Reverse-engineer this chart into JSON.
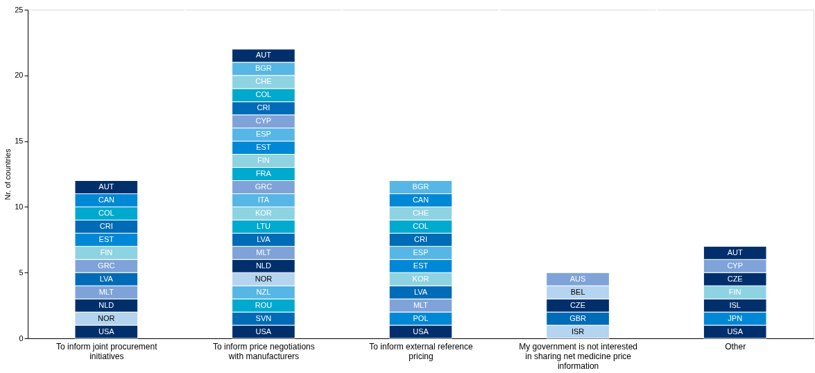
{
  "chart_data": {
    "type": "bar",
    "stacked": true,
    "ylabel": "Nr. of countries",
    "ylim": [
      0,
      25
    ],
    "yticks": [
      0,
      5,
      10,
      15,
      20,
      25
    ],
    "grid": "x",
    "categories": [
      "To inform joint procurement initiatives",
      "To inform price negotiations with manufacturers",
      "To inform external reference pricing",
      "My government is not interested in sharing net medicine price information",
      "Other"
    ],
    "series": [
      {
        "values": [
          1,
          1,
          1,
          1,
          1
        ],
        "colors": [
          "#002f6c",
          "#002f6c",
          "#002f6c",
          "#b4d4f0",
          "#002f6c"
        ],
        "value_labels": [
          "USA",
          "USA",
          "USA",
          "ISR",
          "USA"
        ]
      },
      {
        "values": [
          1,
          1,
          1,
          1,
          1
        ],
        "colors": [
          "#b4d4f0",
          "#006bb6",
          "#0088d6",
          "#006bb6",
          "#0088d6"
        ],
        "value_labels": [
          "NOR",
          "SVN",
          "POL",
          "GBR",
          "JPN"
        ]
      },
      {
        "values": [
          1,
          1,
          1,
          1,
          1
        ],
        "colors": [
          "#002f6c",
          "#00a9ce",
          "#7fa3d8",
          "#002f6c",
          "#002f6c"
        ],
        "value_labels": [
          "NLD",
          "ROU",
          "MLT",
          "CZE",
          "ISL"
        ]
      },
      {
        "values": [
          1,
          1,
          1,
          1,
          1
        ],
        "colors": [
          "#7fa3d8",
          "#56b6e6",
          "#006bb6",
          "#b4d4f0",
          "#8dd3e2"
        ],
        "value_labels": [
          "MLT",
          "NZL",
          "LVA",
          "BEL",
          "FIN"
        ]
      },
      {
        "values": [
          1,
          1,
          1,
          1,
          1
        ],
        "colors": [
          "#006bb6",
          "#b4d4f0",
          "#8dd3e2",
          "#7fa3d8",
          "#002f6c"
        ],
        "value_labels": [
          "LVA",
          "NOR",
          "KOR",
          "AUS",
          "CZE"
        ]
      },
      {
        "values": [
          1,
          1,
          1,
          null,
          1
        ],
        "colors": [
          "#7fa3d8",
          "#002f6c",
          "#0088d6",
          null,
          "#7fa3d8"
        ],
        "value_labels": [
          "GRC",
          "NLD",
          "EST",
          null,
          "CYP"
        ]
      },
      {
        "values": [
          1,
          1,
          1,
          null,
          1
        ],
        "colors": [
          "#8dd3e2",
          "#7fa3d8",
          "#56b6e6",
          null,
          "#002f6c"
        ],
        "value_labels": [
          "FIN",
          "MLT",
          "ESP",
          null,
          "AUT"
        ]
      },
      {
        "values": [
          1,
          1,
          1,
          null,
          null
        ],
        "colors": [
          "#0088d6",
          "#006bb6",
          "#006bb6",
          null,
          null
        ],
        "value_labels": [
          "EST",
          "LVA",
          "CRI",
          null,
          null
        ]
      },
      {
        "values": [
          1,
          1,
          1,
          null,
          null
        ],
        "colors": [
          "#006bb6",
          "#00a9ce",
          "#00a9ce",
          null,
          null
        ],
        "value_labels": [
          "CRI",
          "LTU",
          "COL",
          null,
          null
        ]
      },
      {
        "values": [
          1,
          1,
          1,
          null,
          null
        ],
        "colors": [
          "#00a9ce",
          "#8dd3e2",
          "#8dd3e2",
          null,
          null
        ],
        "value_labels": [
          "COL",
          "KOR",
          "CHE",
          null,
          null
        ]
      },
      {
        "values": [
          1,
          1,
          1,
          null,
          null
        ],
        "colors": [
          "#0088d6",
          "#56b6e6",
          "#0088d6",
          null,
          null
        ],
        "value_labels": [
          "CAN",
          "ITA",
          "CAN",
          null,
          null
        ]
      },
      {
        "values": [
          1,
          1,
          1,
          null,
          null
        ],
        "colors": [
          "#002f6c",
          "#7fa3d8",
          "#56b6e6",
          null,
          null
        ],
        "value_labels": [
          "AUT",
          "GRC",
          "BGR",
          null,
          null
        ]
      },
      {
        "values": [
          null,
          1,
          null,
          null,
          null
        ],
        "colors": [
          null,
          "#00a9ce",
          null,
          null,
          null
        ],
        "value_labels": [
          null,
          "FRA",
          null,
          null,
          null
        ]
      },
      {
        "values": [
          null,
          1,
          null,
          null,
          null
        ],
        "colors": [
          null,
          "#8dd3e2",
          null,
          null,
          null
        ],
        "value_labels": [
          null,
          "FIN",
          null,
          null,
          null
        ]
      },
      {
        "values": [
          null,
          1,
          null,
          null,
          null
        ],
        "colors": [
          null,
          "#0088d6",
          null,
          null,
          null
        ],
        "value_labels": [
          null,
          "EST",
          null,
          null,
          null
        ]
      },
      {
        "values": [
          null,
          1,
          null,
          null,
          null
        ],
        "colors": [
          null,
          "#56b6e6",
          null,
          null,
          null
        ],
        "value_labels": [
          null,
          "ESP",
          null,
          null,
          null
        ]
      },
      {
        "values": [
          null,
          1,
          null,
          null,
          null
        ],
        "colors": [
          null,
          "#7fa3d8",
          null,
          null,
          null
        ],
        "value_labels": [
          null,
          "CYP",
          null,
          null,
          null
        ]
      },
      {
        "values": [
          null,
          1,
          null,
          null,
          null
        ],
        "colors": [
          null,
          "#006bb6",
          null,
          null,
          null
        ],
        "value_labels": [
          null,
          "CRI",
          null,
          null,
          null
        ]
      },
      {
        "values": [
          null,
          1,
          null,
          null,
          null
        ],
        "colors": [
          null,
          "#00a9ce",
          null,
          null,
          null
        ],
        "value_labels": [
          null,
          "COL",
          null,
          null,
          null
        ]
      },
      {
        "values": [
          null,
          1,
          null,
          null,
          null
        ],
        "colors": [
          null,
          "#8dd3e2",
          null,
          null,
          null
        ],
        "value_labels": [
          null,
          "CHE",
          null,
          null,
          null
        ]
      },
      {
        "values": [
          null,
          1,
          null,
          null,
          null
        ],
        "colors": [
          null,
          "#56b6e6",
          null,
          null,
          null
        ],
        "value_labels": [
          null,
          "BGR",
          null,
          null,
          null
        ]
      },
      {
        "values": [
          null,
          1,
          null,
          null,
          null
        ],
        "colors": [
          null,
          "#002f6c",
          null,
          null,
          null
        ],
        "value_labels": [
          null,
          "AUT",
          null,
          null,
          null
        ]
      }
    ]
  }
}
